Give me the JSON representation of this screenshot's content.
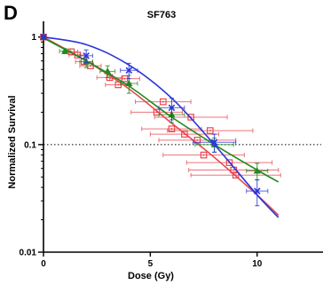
{
  "chart_data": {
    "type": "scatter",
    "panel_label": "D",
    "title": "SF763",
    "xlabel": "Dose (Gy)",
    "ylabel": "Normalized Survival",
    "xlim": [
      0,
      13
    ],
    "ylim": [
      0.01,
      1.25
    ],
    "yscale": "log",
    "xticks": [
      0,
      5,
      10
    ],
    "yticks": [
      {
        "value": 0.01,
        "label": "0.01"
      },
      {
        "value": 0.1,
        "label": "0.1"
      },
      {
        "value": 1,
        "label": "1"
      }
    ],
    "reference_line": {
      "y": 0.1,
      "style": "dotted"
    },
    "grid": false,
    "legend": "none",
    "series": [
      {
        "color": "#e8474f",
        "marker": "square-dot",
        "points": [
          {
            "x": 0,
            "y": 1.0
          },
          {
            "x": 1.3,
            "y": 0.73,
            "xerr": 0.3
          },
          {
            "x": 1.6,
            "y": 0.68,
            "xerr": 0.4
          },
          {
            "x": 1.9,
            "y": 0.59,
            "xerr": 0.4
          },
          {
            "x": 2.2,
            "y": 0.54,
            "xerr": 0.5
          },
          {
            "x": 3.1,
            "y": 0.42,
            "xerr": 0.6
          },
          {
            "x": 3.5,
            "y": 0.36,
            "xerr": 0.6
          },
          {
            "x": 3.8,
            "y": 0.41,
            "xerr": 0.7
          },
          {
            "x": 5.3,
            "y": 0.2,
            "xerr": 1.2
          },
          {
            "x": 5.6,
            "y": 0.25,
            "xerr": 1.3
          },
          {
            "x": 6.0,
            "y": 0.14,
            "xerr": 1.4
          },
          {
            "x": 6.6,
            "y": 0.125,
            "xerr": 1.6
          },
          {
            "x": 6.9,
            "y": 0.18,
            "xerr": 1.7
          },
          {
            "x": 7.2,
            "y": 0.11,
            "xerr": 1.8
          },
          {
            "x": 7.5,
            "y": 0.08,
            "xerr": 1.9
          },
          {
            "x": 7.8,
            "y": 0.135,
            "xerr": 2.0
          },
          {
            "x": 8.7,
            "y": 0.068,
            "xerr": 2.0
          },
          {
            "x": 8.9,
            "y": 0.058,
            "xerr": 2.1
          },
          {
            "x": 9.0,
            "y": 0.052,
            "xerr": 2.1
          }
        ],
        "fit": [
          [
            0,
            1.0
          ],
          [
            2,
            0.6
          ],
          [
            4,
            0.33
          ],
          [
            6,
            0.158
          ],
          [
            8,
            0.076
          ],
          [
            10,
            0.034
          ],
          [
            11,
            0.022
          ]
        ]
      },
      {
        "color": "#1f8a1f",
        "marker": "triangle",
        "points": [
          {
            "x": 0,
            "y": 1.0,
            "xerr": 0.1,
            "yerr": 0.04
          },
          {
            "x": 1.0,
            "y": 0.74,
            "xerr": 0.25,
            "yerr": 0.04
          },
          {
            "x": 2.0,
            "y": 0.59,
            "xerr": 0.3,
            "yerr": 0.07
          },
          {
            "x": 3.0,
            "y": 0.48,
            "xerr": 0.35,
            "yerr": 0.06
          },
          {
            "x": 4.0,
            "y": 0.37,
            "xerr": 0.4,
            "yerr": 0.07
          },
          {
            "x": 6.0,
            "y": 0.19,
            "xerr": 0.6,
            "yerr": 0.03
          },
          {
            "x": 8.0,
            "y": 0.1,
            "xerr": 0.9,
            "yerr": 0.015
          },
          {
            "x": 10.0,
            "y": 0.057,
            "xerr": 0.5,
            "yerr": 0.01
          }
        ],
        "fit": [
          [
            0,
            0.98
          ],
          [
            2,
            0.6
          ],
          [
            4,
            0.35
          ],
          [
            6,
            0.18
          ],
          [
            8,
            0.1
          ],
          [
            10,
            0.058
          ],
          [
            11,
            0.045
          ]
        ]
      },
      {
        "color": "#2a35d8",
        "marker": "x",
        "points": [
          {
            "x": 0,
            "y": 1.0,
            "xerr": 0.1,
            "yerr": 0.05
          },
          {
            "x": 2.0,
            "y": 0.67,
            "xerr": 0.3,
            "yerr": 0.09
          },
          {
            "x": 4.0,
            "y": 0.49,
            "xerr": 0.4,
            "yerr": 0.08
          },
          {
            "x": 6.0,
            "y": 0.22,
            "xerr": 0.6,
            "yerr": 0.05
          },
          {
            "x": 8.0,
            "y": 0.105,
            "xerr": 1.0,
            "yerr": 0.02
          },
          {
            "x": 10.0,
            "y": 0.037,
            "xerr": 0.5,
            "yerr": 0.01
          }
        ],
        "fit": [
          [
            0,
            1.0
          ],
          [
            2,
            0.85
          ],
          [
            4,
            0.55
          ],
          [
            6,
            0.27
          ],
          [
            8,
            0.1
          ],
          [
            10,
            0.034
          ],
          [
            11,
            0.021
          ]
        ]
      }
    ]
  }
}
